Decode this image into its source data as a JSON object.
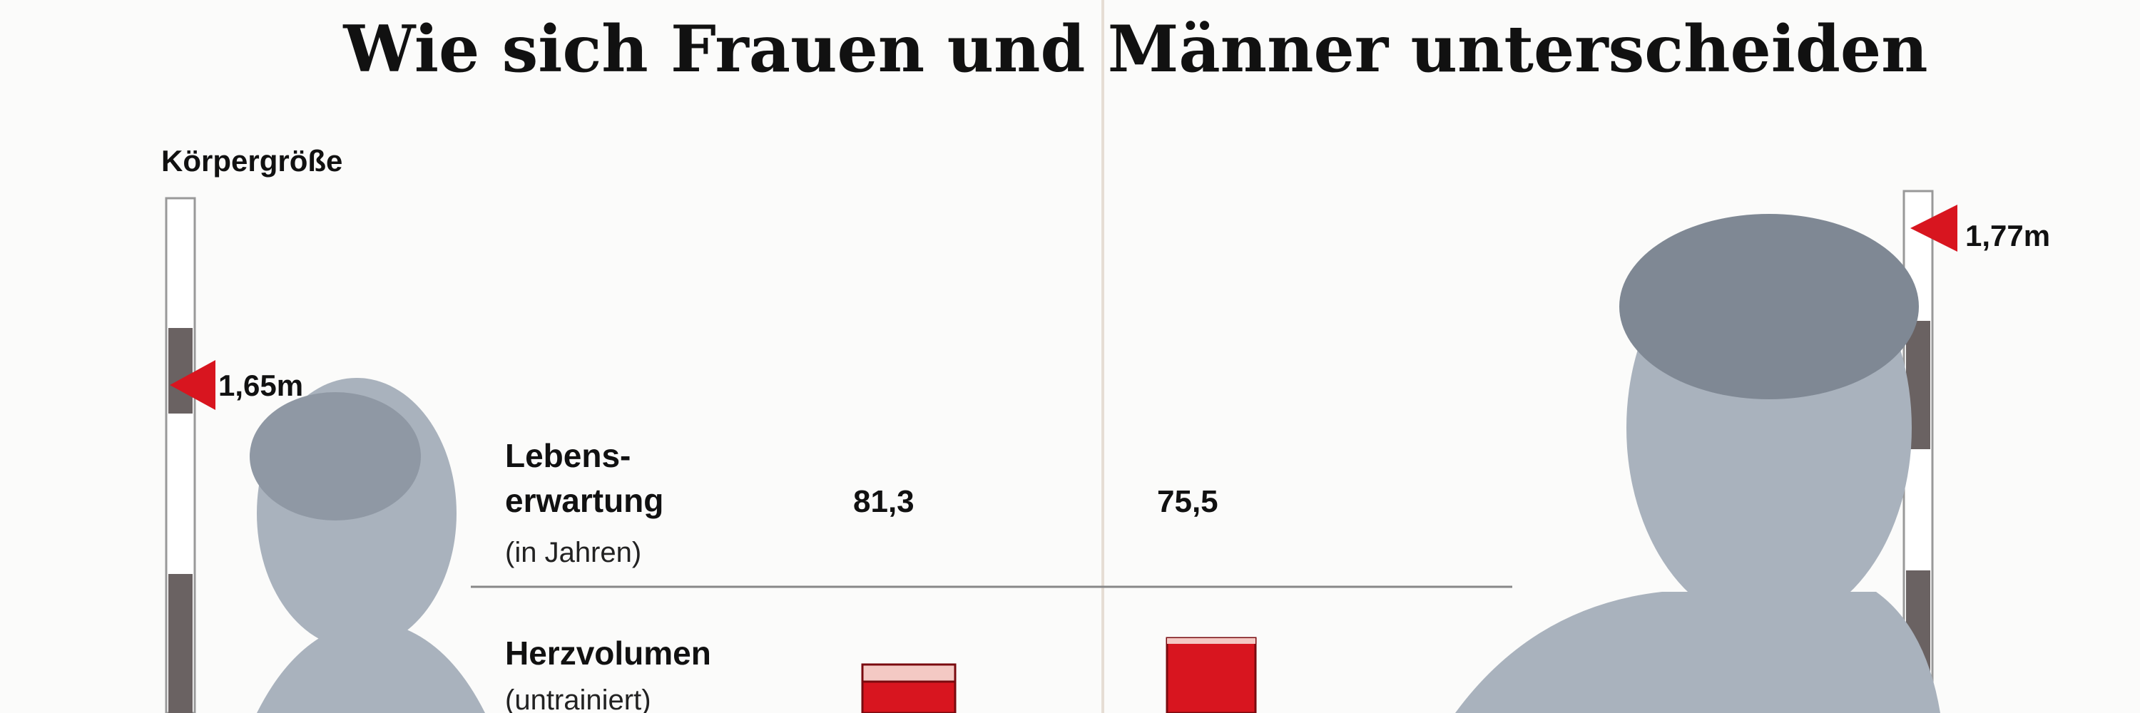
{
  "title": "Wie sich Frauen und Männer unterscheiden",
  "height_section": {
    "label": "Körpergröße",
    "women": "1,65m",
    "men": "1,77m"
  },
  "rows": [
    {
      "label_lines": [
        "Lebens-",
        "erwartung"
      ],
      "note": "(in Jahren)",
      "women": "81,3",
      "men": "75,5"
    },
    {
      "label_lines": [
        "Herzvolumen"
      ],
      "note": "(untrainiert)"
    }
  ]
}
